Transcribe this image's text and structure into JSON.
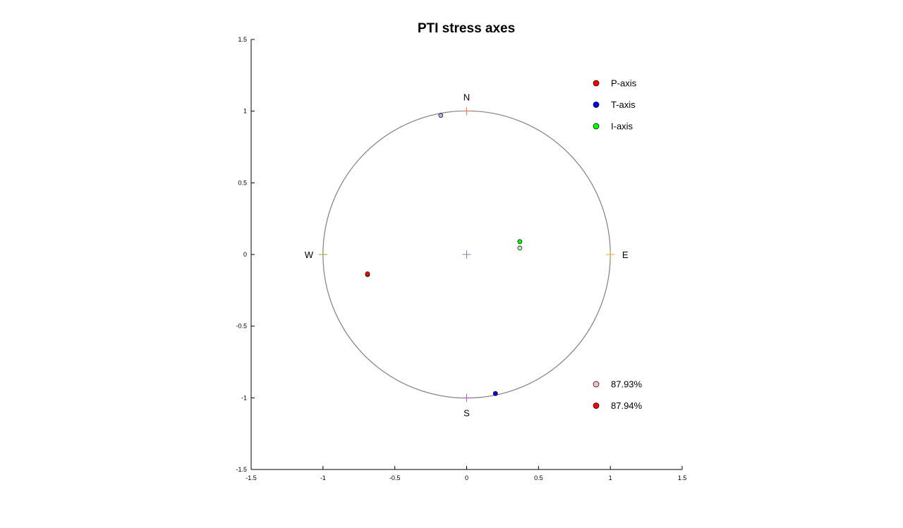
{
  "chart_data": {
    "type": "scatter",
    "title": "PTI stress axes",
    "xlabel": "",
    "ylabel": "",
    "xlim": [
      -1.5,
      1.5
    ],
    "ylim": [
      -1.5,
      1.5
    ],
    "x_ticks": [
      -1.5,
      -1,
      -0.5,
      0,
      0.5,
      1,
      1.5
    ],
    "y_ticks": [
      -1.5,
      -1,
      -0.5,
      0,
      0.5,
      1,
      1.5
    ],
    "x_tick_labels": [
      "-1.5",
      "-1",
      "-0.5",
      "0",
      "0.5",
      "1",
      "1.5"
    ],
    "y_tick_labels": [
      "-1.5",
      "-1",
      "-0.5",
      "0",
      "0.5",
      "1",
      "1.5"
    ],
    "grid": false,
    "circle_radius": 1,
    "compass_labels": {
      "north": "N",
      "south": "S",
      "east": "E",
      "west": "W"
    },
    "compass_marks": [
      {
        "x": 0,
        "y": 1,
        "color": "#ff7f50"
      },
      {
        "x": 0,
        "y": -1,
        "color": "#b05fd0"
      },
      {
        "x": 1,
        "y": 0,
        "color": "#e6a030"
      },
      {
        "x": -1,
        "y": 0,
        "color": "#9aa040"
      },
      {
        "x": 0,
        "y": 0,
        "color": "#8080a0"
      }
    ],
    "points": [
      {
        "x": -0.18,
        "y": 0.97,
        "color": "#b0b0ff"
      },
      {
        "x": 0.2,
        "y": -0.97,
        "color": "#1010c8"
      },
      {
        "x": 0.2,
        "y": -0.97,
        "color": "#0000ff"
      },
      {
        "x": -0.69,
        "y": -0.14,
        "color": "#90e890"
      },
      {
        "x": -0.69,
        "y": -0.135,
        "color": "#ff0000"
      },
      {
        "x": 0.37,
        "y": 0.09,
        "color": "#00ff00"
      },
      {
        "x": 0.37,
        "y": 0.045,
        "color": "#b0f0b0"
      }
    ],
    "legend_placement": "top-right",
    "legend": [
      {
        "label": "P-axis",
        "color": "#ff0000"
      },
      {
        "label": "T-axis",
        "color": "#0000ff"
      },
      {
        "label": "I-axis",
        "color": "#00ff00"
      }
    ],
    "legend2_placement": "bottom-right",
    "legend2": [
      {
        "label": "87.93%",
        "color": "#ffc0c0"
      },
      {
        "label": "87.94%",
        "color": "#ff0000"
      }
    ]
  }
}
